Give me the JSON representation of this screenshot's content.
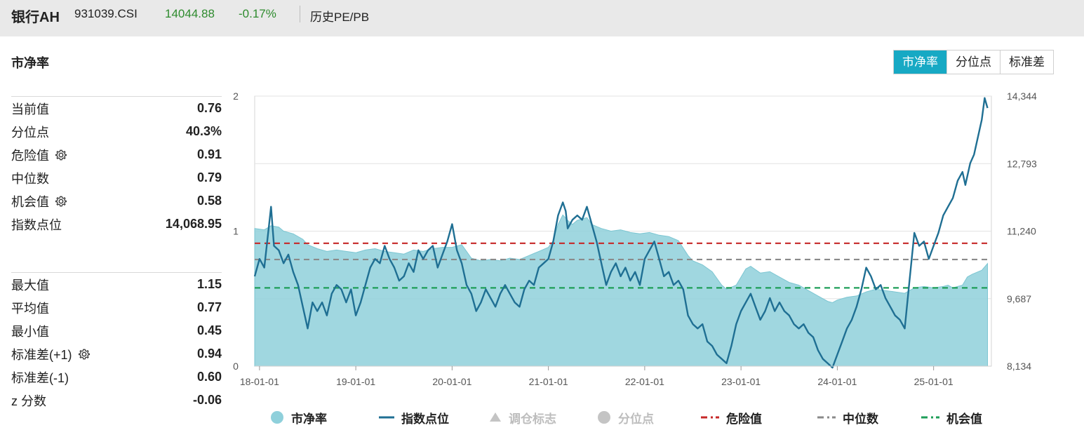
{
  "header": {
    "name": "银行AH",
    "code": "931039.CSI",
    "price": "14044.88",
    "change": "-0.17%",
    "metric": "历史PE/PB"
  },
  "section": {
    "title": "市净率"
  },
  "tabs": [
    {
      "label": "市净率",
      "active": true
    },
    {
      "label": "分位点",
      "active": false
    },
    {
      "label": "标准差",
      "active": false
    }
  ],
  "stats_group1": [
    {
      "label": "当前值",
      "value": "0.76",
      "gear": false
    },
    {
      "label": "分位点",
      "value": "40.3%",
      "gear": false
    },
    {
      "label": "危险值",
      "value": "0.91",
      "gear": true
    },
    {
      "label": "中位数",
      "value": "0.79",
      "gear": false
    },
    {
      "label": "机会值",
      "value": "0.58",
      "gear": true
    },
    {
      "label": "指数点位",
      "value": "14,068.95",
      "gear": false
    }
  ],
  "stats_group2": [
    {
      "label": "最大值",
      "value": "1.15",
      "gear": false
    },
    {
      "label": "平均值",
      "value": "0.77",
      "gear": false
    },
    {
      "label": "最小值",
      "value": "0.45",
      "gear": false
    },
    {
      "label": "标准差(+1)",
      "value": "0.94",
      "gear": true
    },
    {
      "label": "标准差(-1)",
      "value": "0.60",
      "gear": false
    },
    {
      "label": "z 分数",
      "value": "-0.06",
      "gear": false
    }
  ],
  "chart_data": {
    "type": "line",
    "x_ticks": [
      "18-01-01",
      "19-01-01",
      "20-01-01",
      "21-01-01",
      "22-01-01",
      "23-01-01",
      "24-01-01",
      "25-01-01"
    ],
    "y_left_ticks": [
      "0",
      "1",
      "2"
    ],
    "y_left_range": [
      0,
      2
    ],
    "y_right_ticks": [
      "8,134",
      "9,687",
      "11,240",
      "12,793",
      "14,344"
    ],
    "y_right_range": [
      8134,
      14344
    ],
    "x_range": [
      2017.95,
      2025.6
    ],
    "grid": true,
    "legend_position": "bottom",
    "reference_lines": [
      {
        "name": "危险值",
        "value": 0.91,
        "color": "#c62828"
      },
      {
        "name": "中位数",
        "value": 0.79,
        "color": "#8a8a8a"
      },
      {
        "name": "机会值",
        "value": 0.58,
        "color": "#1e9e58"
      }
    ],
    "series": [
      {
        "name": "市净率",
        "kind": "area",
        "axis": "left",
        "color": "#8fd0db",
        "points": [
          [
            2017.95,
            1.02
          ],
          [
            2018.05,
            1.01
          ],
          [
            2018.12,
            1.04
          ],
          [
            2018.2,
            1.03
          ],
          [
            2018.25,
            1.0
          ],
          [
            2018.35,
            0.98
          ],
          [
            2018.45,
            0.94
          ],
          [
            2018.5,
            0.9
          ],
          [
            2018.6,
            0.87
          ],
          [
            2018.7,
            0.85
          ],
          [
            2018.8,
            0.86
          ],
          [
            2018.9,
            0.85
          ],
          [
            2019.0,
            0.84
          ],
          [
            2019.1,
            0.86
          ],
          [
            2019.2,
            0.87
          ],
          [
            2019.3,
            0.85
          ],
          [
            2019.4,
            0.84
          ],
          [
            2019.5,
            0.83
          ],
          [
            2019.6,
            0.86
          ],
          [
            2019.7,
            0.85
          ],
          [
            2019.8,
            0.87
          ],
          [
            2019.9,
            0.88
          ],
          [
            2020.0,
            0.88
          ],
          [
            2020.1,
            0.9
          ],
          [
            2020.15,
            0.85
          ],
          [
            2020.2,
            0.8
          ],
          [
            2020.3,
            0.78
          ],
          [
            2020.4,
            0.79
          ],
          [
            2020.5,
            0.78
          ],
          [
            2020.6,
            0.8
          ],
          [
            2020.7,
            0.79
          ],
          [
            2020.8,
            0.82
          ],
          [
            2020.9,
            0.85
          ],
          [
            2021.0,
            0.88
          ],
          [
            2021.05,
            0.93
          ],
          [
            2021.1,
            1.05
          ],
          [
            2021.15,
            1.12
          ],
          [
            2021.2,
            1.08
          ],
          [
            2021.25,
            1.05
          ],
          [
            2021.3,
            1.08
          ],
          [
            2021.4,
            1.1
          ],
          [
            2021.45,
            1.05
          ],
          [
            2021.55,
            1.02
          ],
          [
            2021.65,
            1.0
          ],
          [
            2021.75,
            1.01
          ],
          [
            2021.85,
            0.99
          ],
          [
            2021.95,
            0.98
          ],
          [
            2022.05,
            0.99
          ],
          [
            2022.15,
            0.97
          ],
          [
            2022.25,
            0.96
          ],
          [
            2022.35,
            0.93
          ],
          [
            2022.45,
            0.82
          ],
          [
            2022.5,
            0.78
          ],
          [
            2022.6,
            0.75
          ],
          [
            2022.7,
            0.7
          ],
          [
            2022.8,
            0.6
          ],
          [
            2022.85,
            0.57
          ],
          [
            2022.95,
            0.6
          ],
          [
            2023.05,
            0.72
          ],
          [
            2023.1,
            0.74
          ],
          [
            2023.2,
            0.69
          ],
          [
            2023.3,
            0.7
          ],
          [
            2023.4,
            0.66
          ],
          [
            2023.5,
            0.62
          ],
          [
            2023.6,
            0.6
          ],
          [
            2023.7,
            0.56
          ],
          [
            2023.8,
            0.52
          ],
          [
            2023.9,
            0.48
          ],
          [
            2023.95,
            0.47
          ],
          [
            2024.0,
            0.49
          ],
          [
            2024.1,
            0.51
          ],
          [
            2024.2,
            0.52
          ],
          [
            2024.3,
            0.55
          ],
          [
            2024.4,
            0.57
          ],
          [
            2024.5,
            0.56
          ],
          [
            2024.6,
            0.55
          ],
          [
            2024.7,
            0.54
          ],
          [
            2024.8,
            0.58
          ],
          [
            2024.9,
            0.59
          ],
          [
            2025.0,
            0.58
          ],
          [
            2025.1,
            0.59
          ],
          [
            2025.15,
            0.6
          ],
          [
            2025.2,
            0.58
          ],
          [
            2025.25,
            0.59
          ],
          [
            2025.3,
            0.6
          ],
          [
            2025.35,
            0.66
          ],
          [
            2025.4,
            0.68
          ],
          [
            2025.5,
            0.71
          ],
          [
            2025.56,
            0.76
          ]
        ]
      },
      {
        "name": "指数点位",
        "kind": "line",
        "axis": "right",
        "color": "#1f6f93",
        "points": [
          [
            2017.95,
            10.2
          ],
          [
            2018.0,
            10.6
          ],
          [
            2018.05,
            10.4
          ],
          [
            2018.1,
            11.4
          ],
          [
            2018.12,
            11.8
          ],
          [
            2018.15,
            10.9
          ],
          [
            2018.2,
            10.8
          ],
          [
            2018.25,
            10.5
          ],
          [
            2018.3,
            10.7
          ],
          [
            2018.35,
            10.3
          ],
          [
            2018.4,
            10.0
          ],
          [
            2018.45,
            9.5
          ],
          [
            2018.5,
            9.0
          ],
          [
            2018.55,
            9.6
          ],
          [
            2018.6,
            9.4
          ],
          [
            2018.65,
            9.6
          ],
          [
            2018.7,
            9.3
          ],
          [
            2018.75,
            9.8
          ],
          [
            2018.8,
            10.0
          ],
          [
            2018.85,
            9.9
          ],
          [
            2018.9,
            9.6
          ],
          [
            2018.95,
            9.9
          ],
          [
            2019.0,
            9.3
          ],
          [
            2019.05,
            9.6
          ],
          [
            2019.1,
            10.0
          ],
          [
            2019.15,
            10.4
          ],
          [
            2019.2,
            10.6
          ],
          [
            2019.25,
            10.5
          ],
          [
            2019.3,
            10.9
          ],
          [
            2019.35,
            10.6
          ],
          [
            2019.4,
            10.4
          ],
          [
            2019.45,
            10.1
          ],
          [
            2019.5,
            10.2
          ],
          [
            2019.55,
            10.5
          ],
          [
            2019.6,
            10.3
          ],
          [
            2019.65,
            10.8
          ],
          [
            2019.7,
            10.6
          ],
          [
            2019.75,
            10.8
          ],
          [
            2019.8,
            10.9
          ],
          [
            2019.85,
            10.4
          ],
          [
            2019.9,
            10.7
          ],
          [
            2019.95,
            11.0
          ],
          [
            2020.0,
            11.4
          ],
          [
            2020.05,
            10.8
          ],
          [
            2020.1,
            10.5
          ],
          [
            2020.15,
            10.0
          ],
          [
            2020.2,
            9.8
          ],
          [
            2020.25,
            9.4
          ],
          [
            2020.3,
            9.6
          ],
          [
            2020.35,
            9.9
          ],
          [
            2020.4,
            9.7
          ],
          [
            2020.45,
            9.5
          ],
          [
            2020.5,
            9.8
          ],
          [
            2020.55,
            10.0
          ],
          [
            2020.6,
            9.8
          ],
          [
            2020.65,
            9.6
          ],
          [
            2020.7,
            9.5
          ],
          [
            2020.75,
            9.9
          ],
          [
            2020.8,
            10.1
          ],
          [
            2020.85,
            10.0
          ],
          [
            2020.9,
            10.4
          ],
          [
            2020.95,
            10.5
          ],
          [
            2021.0,
            10.6
          ],
          [
            2021.05,
            11.0
          ],
          [
            2021.1,
            11.6
          ],
          [
            2021.15,
            11.9
          ],
          [
            2021.18,
            11.7
          ],
          [
            2021.2,
            11.3
          ],
          [
            2021.25,
            11.5
          ],
          [
            2021.3,
            11.6
          ],
          [
            2021.35,
            11.5
          ],
          [
            2021.4,
            11.8
          ],
          [
            2021.45,
            11.4
          ],
          [
            2021.5,
            11.0
          ],
          [
            2021.55,
            10.5
          ],
          [
            2021.6,
            10.0
          ],
          [
            2021.65,
            10.3
          ],
          [
            2021.7,
            10.5
          ],
          [
            2021.75,
            10.2
          ],
          [
            2021.8,
            10.4
          ],
          [
            2021.85,
            10.1
          ],
          [
            2021.9,
            10.3
          ],
          [
            2021.95,
            10.0
          ],
          [
            2022.0,
            10.6
          ],
          [
            2022.05,
            10.8
          ],
          [
            2022.1,
            11.0
          ],
          [
            2022.15,
            10.6
          ],
          [
            2022.2,
            10.2
          ],
          [
            2022.25,
            10.3
          ],
          [
            2022.3,
            10.0
          ],
          [
            2022.35,
            10.1
          ],
          [
            2022.4,
            9.9
          ],
          [
            2022.45,
            9.3
          ],
          [
            2022.5,
            9.1
          ],
          [
            2022.55,
            9.0
          ],
          [
            2022.6,
            9.1
          ],
          [
            2022.65,
            8.7
          ],
          [
            2022.7,
            8.6
          ],
          [
            2022.75,
            8.4
          ],
          [
            2022.8,
            8.3
          ],
          [
            2022.85,
            8.2
          ],
          [
            2022.9,
            8.6
          ],
          [
            2022.95,
            9.1
          ],
          [
            2023.0,
            9.4
          ],
          [
            2023.05,
            9.6
          ],
          [
            2023.1,
            9.8
          ],
          [
            2023.15,
            9.5
          ],
          [
            2023.2,
            9.2
          ],
          [
            2023.25,
            9.4
          ],
          [
            2023.3,
            9.7
          ],
          [
            2023.35,
            9.4
          ],
          [
            2023.4,
            9.6
          ],
          [
            2023.45,
            9.4
          ],
          [
            2023.5,
            9.3
          ],
          [
            2023.55,
            9.1
          ],
          [
            2023.6,
            9.0
          ],
          [
            2023.65,
            9.1
          ],
          [
            2023.7,
            8.9
          ],
          [
            2023.75,
            8.8
          ],
          [
            2023.8,
            8.5
          ],
          [
            2023.85,
            8.3
          ],
          [
            2023.9,
            8.2
          ],
          [
            2023.95,
            8.1
          ],
          [
            2024.0,
            8.4
          ],
          [
            2024.05,
            8.7
          ],
          [
            2024.1,
            9.0
          ],
          [
            2024.15,
            9.2
          ],
          [
            2024.2,
            9.5
          ],
          [
            2024.25,
            9.9
          ],
          [
            2024.3,
            10.4
          ],
          [
            2024.35,
            10.2
          ],
          [
            2024.4,
            9.9
          ],
          [
            2024.45,
            10.0
          ],
          [
            2024.5,
            9.7
          ],
          [
            2024.55,
            9.5
          ],
          [
            2024.6,
            9.3
          ],
          [
            2024.65,
            9.2
          ],
          [
            2024.7,
            9.0
          ],
          [
            2024.75,
            10.1
          ],
          [
            2024.8,
            11.2
          ],
          [
            2024.85,
            10.9
          ],
          [
            2024.9,
            11.0
          ],
          [
            2024.95,
            10.6
          ],
          [
            2025.0,
            10.9
          ],
          [
            2025.05,
            11.2
          ],
          [
            2025.1,
            11.6
          ],
          [
            2025.15,
            11.8
          ],
          [
            2025.2,
            12.0
          ],
          [
            2025.25,
            12.4
          ],
          [
            2025.3,
            12.6
          ],
          [
            2025.33,
            12.3
          ],
          [
            2025.38,
            12.8
          ],
          [
            2025.42,
            13.0
          ],
          [
            2025.45,
            13.3
          ],
          [
            2025.5,
            13.8
          ],
          [
            2025.53,
            14.3
          ],
          [
            2025.56,
            14.07
          ]
        ]
      }
    ]
  },
  "legend": [
    {
      "label": "市净率",
      "kind": "dot",
      "color": "#8fd0db",
      "dim": false
    },
    {
      "label": "指数点位",
      "kind": "line",
      "color": "#1f6f93",
      "dim": false
    },
    {
      "label": "调仓标志",
      "kind": "triangle",
      "color": "#c4c4c4",
      "dim": true
    },
    {
      "label": "分位点",
      "kind": "dot",
      "color": "#c4c4c4",
      "dim": true
    },
    {
      "label": "危险值",
      "kind": "dash",
      "color": "#c62828",
      "dim": false
    },
    {
      "label": "中位数",
      "kind": "dash",
      "color": "#8a8a8a",
      "dim": false
    },
    {
      "label": "机会值",
      "kind": "dash",
      "color": "#1e9e58",
      "dim": false
    }
  ],
  "icons": {
    "settings": "gear-icon"
  }
}
